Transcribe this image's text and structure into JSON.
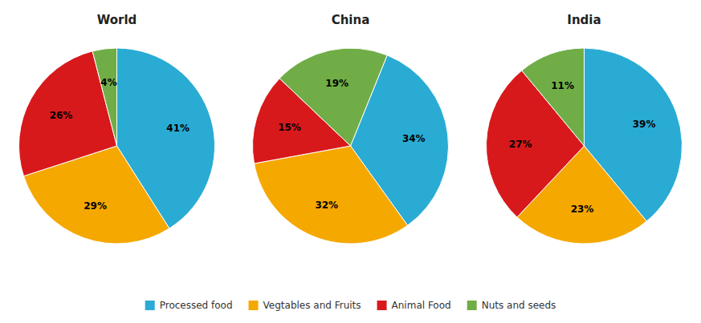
{
  "chart_data": [
    {
      "type": "pie",
      "title": "World",
      "categories": [
        "Processed food",
        "Vegtables and Fruits",
        "Animal Food",
        "Nuts and seeds"
      ],
      "values": [
        41,
        29,
        26,
        4
      ],
      "value_labels": [
        "41%",
        "29%",
        "26%",
        "4%"
      ],
      "colors": [
        "#29ABD4",
        "#F5A800",
        "#D7191C",
        "#70AD47"
      ],
      "data_labels": true,
      "legend": "bottom"
    },
    {
      "type": "pie",
      "title": "China",
      "categories": [
        "Processed food",
        "Vegtables and Fruits",
        "Animal Food",
        "Nuts and seeds"
      ],
      "values": [
        34,
        32,
        15,
        19
      ],
      "value_labels": [
        "34%",
        "32%",
        "15%",
        "19%"
      ],
      "colors": [
        "#29ABD4",
        "#F5A800",
        "#D7191C",
        "#70AD47"
      ],
      "data_labels": true,
      "legend": "bottom"
    },
    {
      "type": "pie",
      "title": "India",
      "categories": [
        "Processed food",
        "Vegtables and Fruits",
        "Animal Food",
        "Nuts and seeds"
      ],
      "values": [
        39,
        23,
        27,
        11
      ],
      "value_labels": [
        "39%",
        "23%",
        "27%",
        "11%"
      ],
      "colors": [
        "#29ABD4",
        "#F5A800",
        "#D7191C",
        "#70AD47"
      ],
      "data_labels": true,
      "legend": "bottom"
    }
  ]
}
